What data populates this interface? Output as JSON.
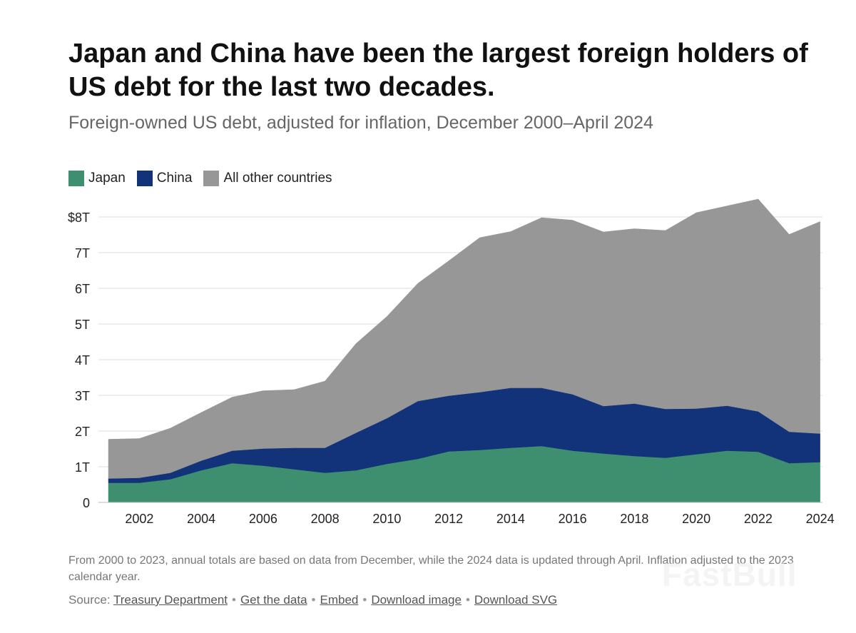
{
  "chart_data": {
    "type": "area",
    "stacked": true,
    "title": "Japan and China have been the largest foreign holders of US debt for the last two decades.",
    "subtitle": "Foreign-owned US debt, adjusted for inflation, December 2000–April 2024",
    "x": [
      2001,
      2002,
      2003,
      2004,
      2005,
      2006,
      2007,
      2008,
      2009,
      2010,
      2011,
      2012,
      2013,
      2014,
      2015,
      2016,
      2017,
      2018,
      2019,
      2020,
      2021,
      2022,
      2023,
      2024
    ],
    "series": [
      {
        "name": "Japan",
        "color": "#3d8f6f",
        "values": [
          0.55,
          0.55,
          0.65,
          0.9,
          1.1,
          1.03,
          0.93,
          0.83,
          0.9,
          1.08,
          1.22,
          1.43,
          1.47,
          1.53,
          1.58,
          1.45,
          1.37,
          1.3,
          1.25,
          1.35,
          1.45,
          1.42,
          1.1,
          1.13
        ]
      },
      {
        "name": "China",
        "color": "#12327a",
        "values": [
          0.12,
          0.14,
          0.18,
          0.27,
          0.35,
          0.48,
          0.6,
          0.7,
          1.05,
          1.28,
          1.62,
          1.56,
          1.62,
          1.68,
          1.63,
          1.58,
          1.33,
          1.47,
          1.37,
          1.28,
          1.26,
          1.13,
          0.88,
          0.8
        ]
      },
      {
        "name": "All other countries",
        "color": "#979797",
        "values": [
          1.1,
          1.1,
          1.25,
          1.35,
          1.5,
          1.62,
          1.63,
          1.87,
          2.5,
          2.85,
          3.3,
          3.78,
          4.33,
          4.38,
          4.77,
          4.88,
          4.88,
          4.9,
          5.0,
          5.49,
          5.6,
          5.95,
          5.53,
          5.94
        ]
      }
    ],
    "xticks": [
      2002,
      2004,
      2006,
      2008,
      2010,
      2012,
      2014,
      2016,
      2018,
      2020,
      2022,
      2024
    ],
    "yticks": [
      {
        "value": 0,
        "label": "0"
      },
      {
        "value": 1,
        "label": "1T"
      },
      {
        "value": 2,
        "label": "2T"
      },
      {
        "value": 3,
        "label": "3T"
      },
      {
        "value": 4,
        "label": "4T"
      },
      {
        "value": 5,
        "label": "5T"
      },
      {
        "value": 6,
        "label": "6T"
      },
      {
        "value": 7,
        "label": "7T"
      },
      {
        "value": 8,
        "label": "$8T"
      }
    ],
    "xlim": [
      2001,
      2024.4
    ],
    "ylim": [
      0,
      8
    ],
    "grid": true,
    "legend_position": "top-left"
  },
  "note": "From 2000 to 2023, annual totals are based on data from December, while the 2024 data is updated through April. Inflation adjusted to the 2023 calendar year.",
  "source": {
    "prefix": "Source:",
    "links": [
      "Treasury Department",
      "Get the data",
      "Embed",
      "Download image",
      "Download SVG"
    ],
    "separator": "•"
  },
  "watermark": "FastBull"
}
